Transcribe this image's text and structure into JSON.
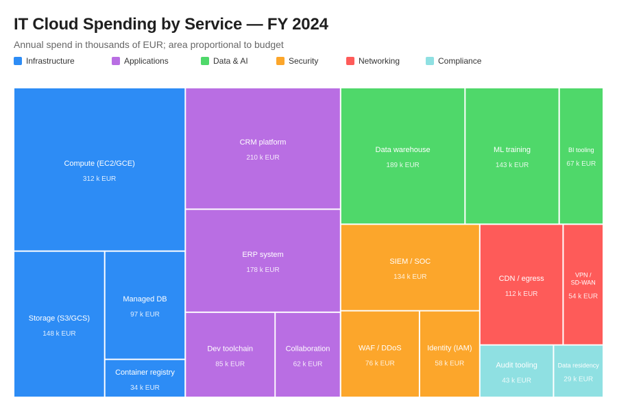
{
  "header": {
    "title": "IT Cloud Spending by Service — FY 2024",
    "subtitle": "Annual spend in thousands of EUR; area proportional to budget"
  },
  "legend": [
    {
      "label": "Infrastructure",
      "color": "#2d8cf5"
    },
    {
      "label": "Applications",
      "color": "#b96ee3"
    },
    {
      "label": "Data & AI",
      "color": "#4fd86a"
    },
    {
      "label": "Security",
      "color": "#fca62b"
    },
    {
      "label": "Networking",
      "color": "#fe5b59"
    },
    {
      "label": "Compliance",
      "color": "#8fe0e2"
    }
  ],
  "chart_data": {
    "type": "treemap",
    "title": "IT Cloud Spending by Service — FY 2024",
    "subtitle": "Annual spend in thousands of EUR; area proportional to budget",
    "unit": "k EUR",
    "groups": [
      {
        "name": "Infrastructure",
        "color": "#2d8cf5",
        "items": [
          {
            "name": "Compute (EC2/GCE)",
            "value": 312,
            "label": "312 k EUR"
          },
          {
            "name": "Storage (S3/GCS)",
            "value": 148,
            "label": "148 k EUR"
          },
          {
            "name": "Managed DB",
            "value": 97,
            "label": "97 k EUR"
          },
          {
            "name": "Container registry",
            "value": 34,
            "label": "34 k EUR"
          }
        ]
      },
      {
        "name": "Applications",
        "color": "#b96ee3",
        "items": [
          {
            "name": "CRM platform",
            "value": 210,
            "label": "210 k EUR"
          },
          {
            "name": "ERP system",
            "value": 178,
            "label": "178 k EUR"
          },
          {
            "name": "Dev toolchain",
            "value": 85,
            "label": "85 k EUR"
          },
          {
            "name": "Collaboration",
            "value": 62,
            "label": "62 k EUR"
          }
        ]
      },
      {
        "name": "Data & AI",
        "color": "#4fd86a",
        "items": [
          {
            "name": "Data warehouse",
            "value": 189,
            "label": "189 k EUR"
          },
          {
            "name": "ML training",
            "value": 143,
            "label": "143 k EUR"
          },
          {
            "name": "BI tooling",
            "value": 67,
            "label": "67 k EUR"
          }
        ]
      },
      {
        "name": "Security",
        "color": "#fca62b",
        "items": [
          {
            "name": "SIEM / SOC",
            "value": 134,
            "label": "134 k EUR"
          },
          {
            "name": "WAF / DDoS",
            "value": 76,
            "label": "76 k EUR"
          },
          {
            "name": "Identity (IAM)",
            "value": 58,
            "label": "58 k EUR"
          }
        ]
      },
      {
        "name": "Networking",
        "color": "#fe5b59",
        "items": [
          {
            "name": "CDN / egress",
            "value": 112,
            "label": "112 k EUR"
          },
          {
            "name": "VPN / SD-WAN",
            "value": 54,
            "label": "54 k EUR"
          }
        ]
      },
      {
        "name": "Compliance",
        "color": "#8fe0e2",
        "items": [
          {
            "name": "Audit tooling",
            "value": 43,
            "label": "43 k EUR"
          },
          {
            "name": "Data residency",
            "value": 29,
            "label": "29 k EUR"
          }
        ]
      }
    ]
  }
}
